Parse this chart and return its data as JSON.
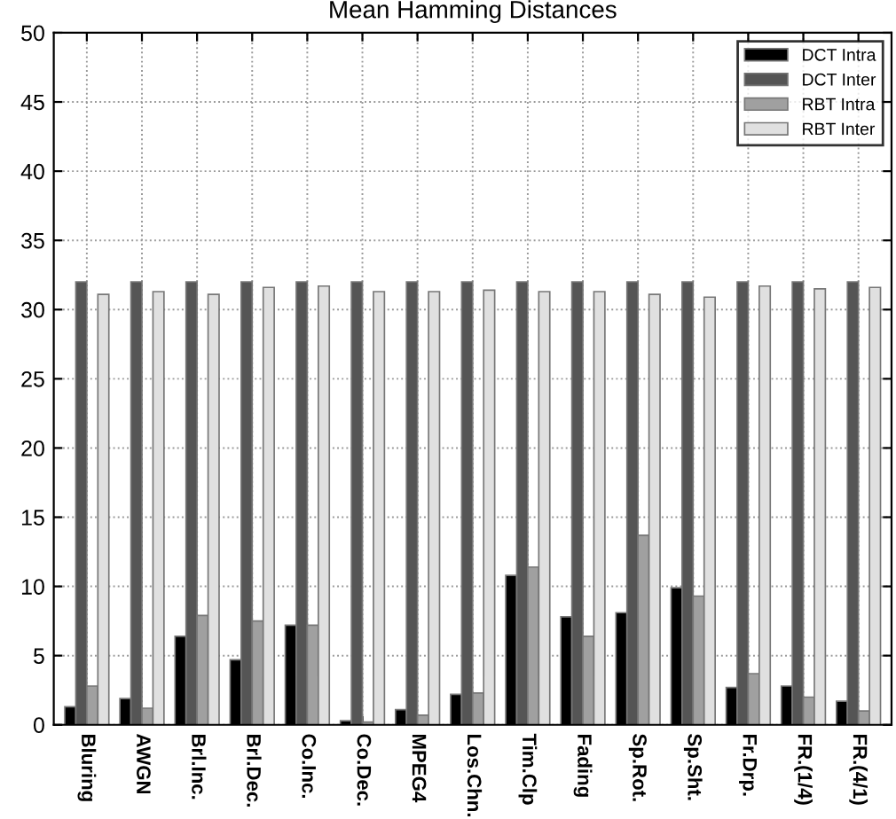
{
  "chart_data": {
    "type": "bar",
    "title": "Mean Hamming Distances",
    "categories": [
      "Bluring",
      "AWGN",
      "Brl.Inc.",
      "Brl.Dec.",
      "Co.Inc.",
      "Co.Dec.",
      "MPEG4",
      "Los.Chn.",
      "Tim.Clp",
      "Fading",
      "Sp.Rot.",
      "Sp.Sht.",
      "Fr.Drp.",
      "FR.(1/4)",
      "FR.(4/1)"
    ],
    "series": [
      {
        "name": "DCT Intra",
        "color": "#000000",
        "values": [
          1.3,
          1.9,
          6.4,
          4.7,
          7.2,
          0.3,
          1.1,
          2.2,
          10.8,
          7.8,
          8.1,
          9.9,
          2.7,
          2.8,
          1.7
        ]
      },
      {
        "name": "DCT Inter",
        "color": "#555555",
        "values": [
          32,
          32,
          32,
          32,
          32,
          32,
          32,
          32,
          32,
          32,
          32,
          32,
          32,
          32,
          32
        ]
      },
      {
        "name": "RBT Intra",
        "color": "#a0a0a0",
        "values": [
          2.8,
          1.2,
          7.9,
          7.5,
          7.2,
          0.2,
          0.7,
          2.3,
          11.4,
          6.4,
          13.7,
          9.3,
          3.7,
          2.0,
          1.0
        ]
      },
      {
        "name": "RBT Inter",
        "color": "#e0e0e0",
        "values": [
          31.1,
          31.3,
          31.1,
          31.6,
          31.7,
          31.3,
          31.3,
          31.4,
          31.3,
          31.3,
          31.1,
          30.9,
          31.7,
          31.5,
          31.6
        ]
      }
    ],
    "ylim": [
      0,
      50
    ],
    "yticks": [
      0,
      5,
      10,
      15,
      20,
      25,
      30,
      35,
      40,
      45,
      50
    ],
    "grid": true,
    "legend": "top right"
  }
}
